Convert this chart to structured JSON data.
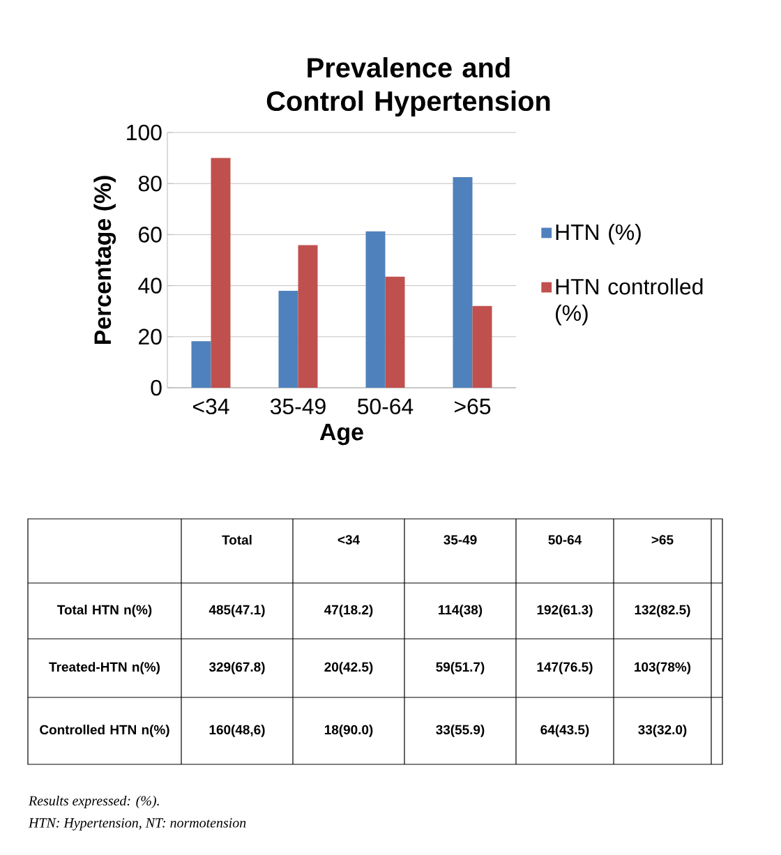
{
  "chart_data": {
    "type": "bar",
    "title": "Prevalence and Control Hypertension",
    "xlabel": "Age",
    "ylabel": "Percentage (%)",
    "categories": [
      "<34",
      "35-49",
      "50-64",
      ">65"
    ],
    "series": [
      {
        "name": "HTN (%)",
        "color": "#4f81bd",
        "values": [
          18.2,
          38,
          61.3,
          82.5
        ]
      },
      {
        "name": "HTN controlled (%)",
        "color": "#c0504d",
        "values": [
          90.0,
          55.9,
          43.5,
          32.0
        ]
      }
    ],
    "ylim": [
      0,
      100
    ],
    "yticks": [
      0,
      20,
      40,
      60,
      80,
      100
    ],
    "grid": "y",
    "legend": "right",
    "annotations": [
      "Total",
      "<34",
      "35-49",
      "50-64",
      ">65",
      "Total HTN n(%)",
      "485(47.1)",
      "47(18.2)",
      "114(38)",
      "192(61.3)",
      "132(82.5)",
      "Treated-HTN n(%)",
      "329(67.8)",
      "20(42.5)",
      "59(51.7)",
      "147(76.5)",
      "103(78%)",
      "Controlled HTN  n(%)",
      "160(48,6)",
      "18(90.0)",
      "33(55.9)",
      "64(43.5)",
      "33(32.0)",
      "Results expressed: (%).",
      "HTN: Hypertension, NT: normotension"
    ]
  }
}
